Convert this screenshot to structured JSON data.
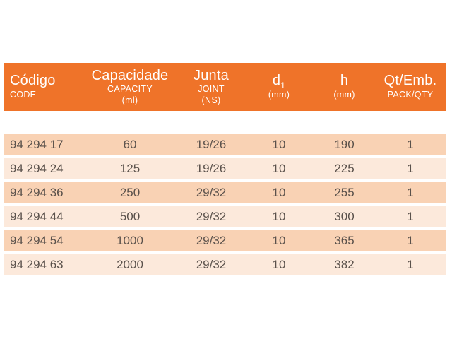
{
  "colors": {
    "header_bg": "#EF7329",
    "header_text": "#FFFFFF",
    "row_odd": "#F9D2B4",
    "row_even": "#FCE9DB",
    "row_text": "#5A514B",
    "page_bg": "#FFFFFF"
  },
  "table": {
    "header": {
      "columns": [
        {
          "id": "codigo",
          "title": "Código",
          "subtitle": "CODE"
        },
        {
          "id": "capacidade",
          "title": "Capacidade",
          "subtitle": "CAPACITY",
          "unit": "(ml)"
        },
        {
          "id": "junta",
          "title": "Junta",
          "subtitle": "JOINT",
          "unit": "(NS)"
        },
        {
          "id": "d1",
          "title": "d",
          "title_sub": "1",
          "unit": "(mm)"
        },
        {
          "id": "h",
          "title": "h",
          "unit": "(mm)"
        },
        {
          "id": "qt_emb",
          "title": "Qt/Emb.",
          "subtitle": "PACK/QTY"
        }
      ]
    },
    "rows": [
      [
        "94 294 17",
        "60",
        "19/26",
        "10",
        "190",
        "1"
      ],
      [
        "94 294 24",
        "125",
        "19/26",
        "10",
        "225",
        "1"
      ],
      [
        "94 294 36",
        "250",
        "29/32",
        "10",
        "255",
        "1"
      ],
      [
        "94 294 44",
        "500",
        "29/32",
        "10",
        "300",
        "1"
      ],
      [
        "94 294 54",
        "1000",
        "29/32",
        "10",
        "365",
        "1"
      ],
      [
        "94 294 63",
        "2000",
        "29/32",
        "10",
        "382",
        "1"
      ]
    ]
  }
}
